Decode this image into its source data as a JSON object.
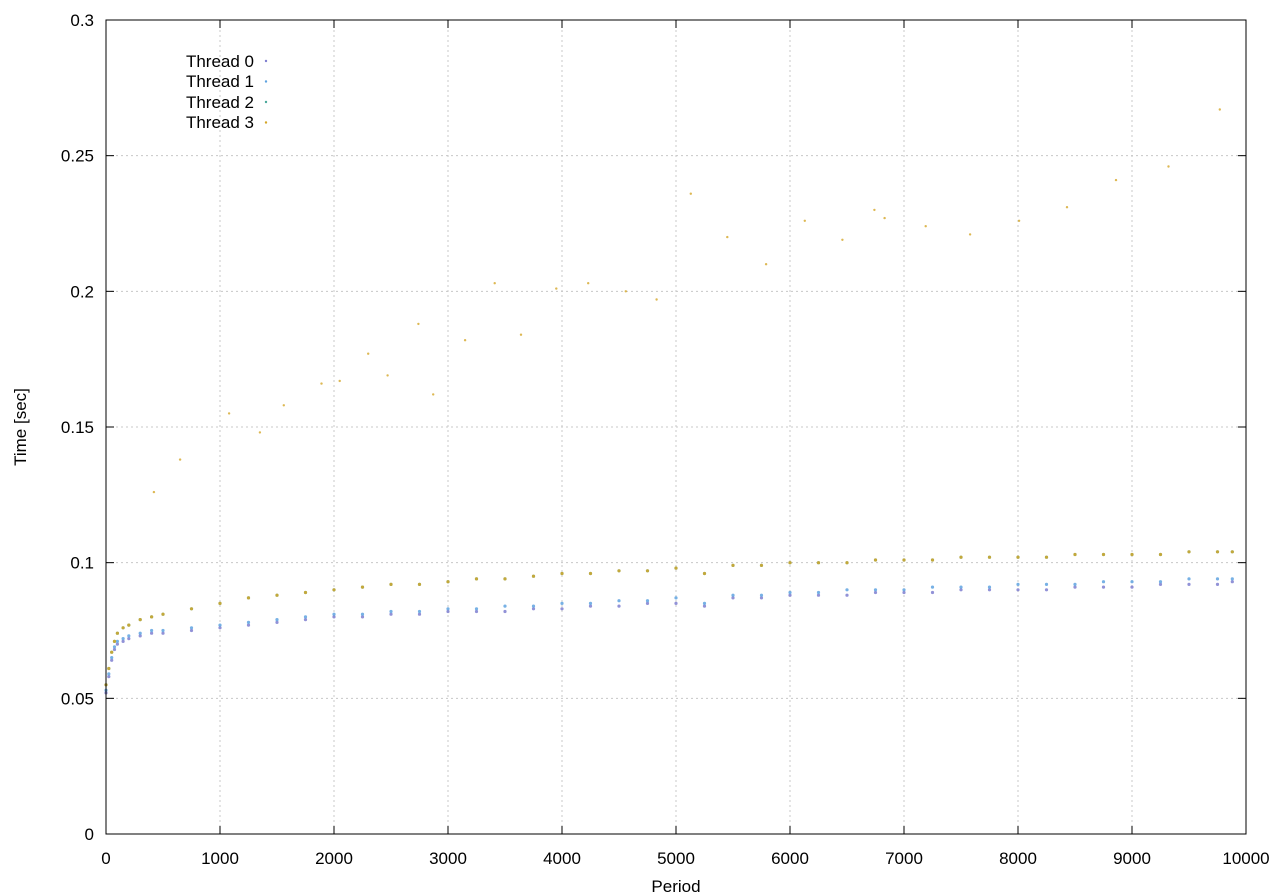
{
  "chart_data": {
    "type": "scatter",
    "xlabel": "Period",
    "ylabel": "Time [sec]",
    "xlim": [
      0,
      10000
    ],
    "ylim": [
      0,
      0.3
    ],
    "x_ticks": [
      "0",
      "1000",
      "2000",
      "3000",
      "4000",
      "5000",
      "6000",
      "7000",
      "8000",
      "9000",
      "10000"
    ],
    "y_ticks": [
      "0",
      "0.05",
      "0.1",
      "0.15",
      "0.2",
      "0.25",
      "0.3"
    ],
    "grid": true,
    "legend_position": "top-left",
    "series": [
      {
        "name": "Thread 0",
        "color": "#7f7fd0",
        "x": [
          0,
          25,
          50,
          75,
          100,
          150,
          200,
          300,
          400,
          500,
          750,
          1000,
          1250,
          1500,
          1750,
          2000,
          2250,
          2500,
          2750,
          3000,
          3250,
          3500,
          3750,
          4000,
          4250,
          4500,
          4750,
          5000,
          5250,
          5500,
          5750,
          6000,
          6250,
          6500,
          6750,
          7000,
          7250,
          7500,
          7750,
          8000,
          8250,
          8500,
          8750,
          9000,
          9250,
          9500,
          9750,
          9880
        ],
        "y": [
          0.052,
          0.058,
          0.064,
          0.068,
          0.07,
          0.071,
          0.072,
          0.073,
          0.074,
          0.074,
          0.075,
          0.076,
          0.077,
          0.078,
          0.079,
          0.08,
          0.08,
          0.081,
          0.081,
          0.082,
          0.082,
          0.082,
          0.083,
          0.083,
          0.084,
          0.084,
          0.085,
          0.085,
          0.084,
          0.087,
          0.087,
          0.088,
          0.088,
          0.088,
          0.089,
          0.089,
          0.089,
          0.09,
          0.09,
          0.09,
          0.09,
          0.091,
          0.091,
          0.091,
          0.092,
          0.092,
          0.092,
          0.093
        ]
      },
      {
        "name": "Thread 1",
        "color": "#5fa3e0",
        "x": [
          0,
          25,
          50,
          75,
          100,
          150,
          200,
          300,
          400,
          500,
          750,
          1000,
          1250,
          1500,
          1750,
          2000,
          2250,
          2500,
          2750,
          3000,
          3250,
          3500,
          3750,
          4000,
          4250,
          4500,
          4750,
          5000,
          5250,
          5500,
          5750,
          6000,
          6250,
          6500,
          6750,
          7000,
          7250,
          7500,
          7750,
          8000,
          8250,
          8500,
          8750,
          9000,
          9250,
          9500,
          9750,
          9880
        ],
        "y": [
          0.053,
          0.059,
          0.065,
          0.069,
          0.071,
          0.072,
          0.073,
          0.074,
          0.075,
          0.075,
          0.076,
          0.077,
          0.078,
          0.079,
          0.08,
          0.081,
          0.081,
          0.082,
          0.082,
          0.083,
          0.083,
          0.084,
          0.084,
          0.085,
          0.085,
          0.086,
          0.086,
          0.087,
          0.085,
          0.088,
          0.088,
          0.089,
          0.089,
          0.09,
          0.09,
          0.09,
          0.091,
          0.091,
          0.091,
          0.092,
          0.092,
          0.092,
          0.093,
          0.093,
          0.093,
          0.094,
          0.094,
          0.094
        ]
      },
      {
        "name": "Thread 2",
        "color": "#4aa89a",
        "x": [
          0,
          25,
          50,
          75,
          100,
          150,
          200,
          300,
          400,
          500,
          750,
          1000,
          1250,
          1500,
          1750,
          2000,
          2250,
          2500,
          2750,
          3000,
          3250,
          3500,
          3750,
          4000,
          4250,
          4500,
          4750,
          5000,
          5250,
          5500,
          5750,
          6000,
          6250,
          6500,
          6750,
          7000,
          7250,
          7500,
          7750,
          8000,
          8250,
          8500,
          8750,
          9000,
          9250,
          9500,
          9750,
          9880
        ],
        "y": [
          0.055,
          0.061,
          0.067,
          0.071,
          0.074,
          0.076,
          0.077,
          0.079,
          0.08,
          0.081,
          0.083,
          0.085,
          0.087,
          0.088,
          0.089,
          0.09,
          0.091,
          0.092,
          0.092,
          0.093,
          0.094,
          0.094,
          0.095,
          0.096,
          0.096,
          0.097,
          0.097,
          0.098,
          0.096,
          0.099,
          0.099,
          0.1,
          0.1,
          0.1,
          0.101,
          0.101,
          0.101,
          0.102,
          0.102,
          0.102,
          0.102,
          0.103,
          0.103,
          0.103,
          0.103,
          0.104,
          0.104,
          0.104
        ]
      },
      {
        "name": "Thread 3",
        "color": "#d4a628",
        "x": [
          0,
          25,
          50,
          75,
          100,
          150,
          200,
          300,
          400,
          500,
          750,
          1000,
          1250,
          1500,
          1750,
          2000,
          2250,
          2500,
          2750,
          3000,
          3250,
          3500,
          3750,
          4000,
          4250,
          4500,
          4750,
          5000,
          5250,
          5500,
          5750,
          6000,
          6250,
          6500,
          6750,
          7000,
          7250,
          7500,
          7750,
          8000,
          8250,
          8500,
          8750,
          9000,
          9250,
          9500,
          9750,
          9880
        ],
        "y": [
          0.055,
          0.061,
          0.067,
          0.071,
          0.074,
          0.076,
          0.077,
          0.079,
          0.08,
          0.081,
          0.083,
          0.085,
          0.087,
          0.088,
          0.089,
          0.09,
          0.091,
          0.092,
          0.092,
          0.093,
          0.094,
          0.094,
          0.095,
          0.096,
          0.096,
          0.097,
          0.097,
          0.098,
          0.096,
          0.099,
          0.099,
          0.1,
          0.1,
          0.1,
          0.101,
          0.101,
          0.101,
          0.102,
          0.102,
          0.102,
          0.102,
          0.103,
          0.103,
          0.103,
          0.103,
          0.104,
          0.104,
          0.104
        ]
      }
    ],
    "outliers": {
      "color": "#d4a628",
      "x": [
        420,
        650,
        1080,
        1350,
        1560,
        1890,
        2050,
        2300,
        2470,
        2740,
        2870,
        3150,
        3410,
        3640,
        3950,
        4230,
        4560,
        4830,
        5130,
        5450,
        5790,
        6130,
        6460,
        6740,
        6830,
        7190,
        7580,
        8010,
        8430,
        8860,
        9320,
        9770
      ],
      "y": [
        0.126,
        0.138,
        0.155,
        0.148,
        0.158,
        0.166,
        0.167,
        0.177,
        0.169,
        0.188,
        0.162,
        0.182,
        0.203,
        0.184,
        0.201,
        0.203,
        0.2,
        0.197,
        0.236,
        0.22,
        0.21,
        0.226,
        0.219,
        0.23,
        0.227,
        0.224,
        0.221,
        0.226,
        0.231,
        0.241,
        0.246,
        0.267
      ]
    }
  }
}
